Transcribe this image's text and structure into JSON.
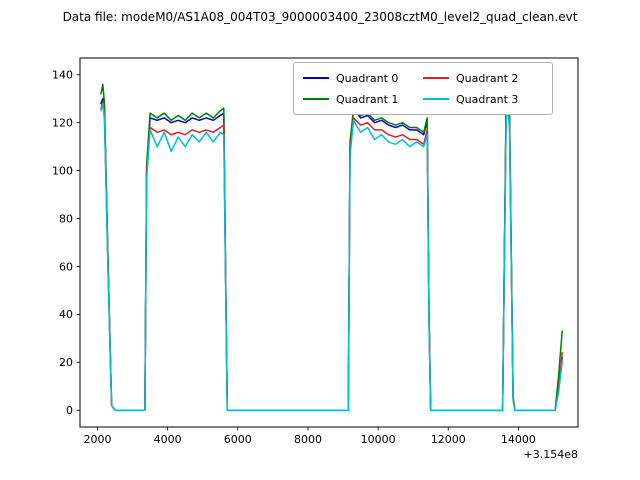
{
  "chart_data": {
    "type": "line",
    "title": "Data file: modeM0/AS1A08_004T03_9000003400_23008cztM0_level2_quad_clean.evt",
    "xlabel": "",
    "ylabel": "",
    "xlim": [
      1500,
      15700
    ],
    "ylim": [
      -7,
      147
    ],
    "xticks": [
      2000,
      4000,
      6000,
      8000,
      10000,
      12000,
      14000
    ],
    "yticks": [
      0,
      20,
      40,
      60,
      80,
      100,
      120,
      140
    ],
    "x_axis_offset": "+3.154e8",
    "grid": false,
    "legend_position": "upper center inside axes, 2 columns",
    "x": [
      2100,
      2150,
      2200,
      2300,
      2400,
      2500,
      2800,
      3100,
      3300,
      3350,
      3400,
      3500,
      3700,
      3900,
      4100,
      4300,
      4500,
      4700,
      4900,
      5100,
      5300,
      5500,
      5600,
      5650,
      5700,
      6000,
      6500,
      7000,
      7500,
      8000,
      8500,
      9000,
      9100,
      9150,
      9200,
      9300,
      9500,
      9700,
      9900,
      10100,
      10300,
      10500,
      10700,
      10900,
      11100,
      11300,
      11400,
      11450,
      11500,
      12000,
      12500,
      13000,
      13500,
      13550,
      13650,
      13700,
      13750,
      13800,
      13850,
      13900,
      14200,
      14600,
      15000,
      15050,
      15150,
      15250
    ],
    "series": [
      {
        "name": "Quadrant 0",
        "color": "#0000cd",
        "values": [
          128,
          130,
          124,
          60,
          2,
          0,
          0,
          0,
          0,
          0,
          100,
          122,
          121,
          122,
          120,
          121,
          120,
          122,
          121,
          122,
          121,
          123,
          124,
          60,
          0,
          0,
          0,
          0,
          0,
          0,
          0,
          0,
          0,
          0,
          110,
          126,
          122,
          123,
          120,
          121,
          119,
          118,
          119,
          117,
          117,
          115,
          121,
          40,
          0,
          0,
          0,
          0,
          0,
          0,
          125,
          132,
          120,
          60,
          5,
          0,
          0,
          0,
          0,
          0,
          10,
          22
        ]
      },
      {
        "name": "Quadrant 1",
        "color": "#008000",
        "values": [
          132,
          136,
          128,
          62,
          2,
          0,
          0,
          0,
          0,
          0,
          102,
          124,
          122,
          124,
          121,
          123,
          121,
          124,
          122,
          124,
          122,
          125,
          126,
          62,
          0,
          0,
          0,
          0,
          0,
          0,
          0,
          0,
          0,
          0,
          112,
          125,
          123,
          124,
          121,
          122,
          120,
          119,
          120,
          118,
          118,
          116,
          122,
          42,
          0,
          0,
          0,
          0,
          0,
          0,
          130,
          140,
          124,
          62,
          6,
          0,
          0,
          0,
          0,
          0,
          15,
          33
        ]
      },
      {
        "name": "Quadrant 2",
        "color": "#e02020",
        "values": [
          126,
          129,
          122,
          58,
          2,
          0,
          0,
          0,
          0,
          0,
          98,
          118,
          116,
          117,
          115,
          116,
          115,
          117,
          116,
          117,
          116,
          118,
          119,
          58,
          0,
          0,
          0,
          0,
          0,
          0,
          0,
          0,
          0,
          0,
          108,
          122,
          119,
          120,
          117,
          117,
          115,
          114,
          115,
          113,
          113,
          111,
          117,
          38,
          0,
          0,
          0,
          0,
          0,
          0,
          122,
          130,
          118,
          58,
          5,
          0,
          0,
          0,
          0,
          0,
          9,
          24
        ]
      },
      {
        "name": "Quadrant 3",
        "color": "#00bfcf",
        "values": [
          125,
          128,
          121,
          57,
          2,
          0,
          0,
          0,
          0,
          0,
          96,
          117,
          110,
          116,
          108,
          114,
          110,
          115,
          112,
          116,
          112,
          116,
          115,
          56,
          0,
          0,
          0,
          0,
          0,
          0,
          0,
          0,
          0,
          0,
          106,
          121,
          116,
          118,
          113,
          115,
          112,
          111,
          113,
          110,
          112,
          110,
          115,
          36,
          0,
          0,
          0,
          0,
          0,
          0,
          120,
          128,
          116,
          56,
          4,
          0,
          0,
          0,
          0,
          0,
          8,
          20
        ]
      }
    ]
  }
}
